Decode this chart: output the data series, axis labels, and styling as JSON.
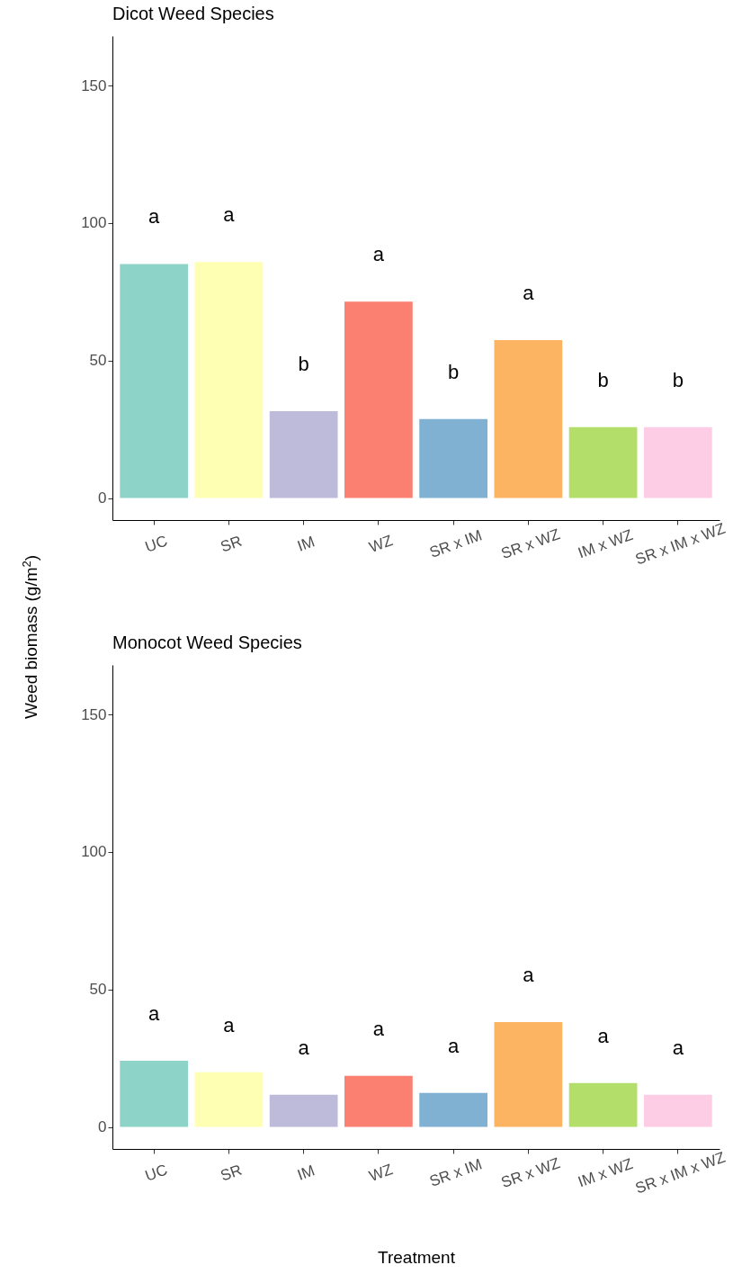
{
  "chart_data": [
    {
      "type": "bar",
      "title": "Dicot Weed Species",
      "ylabel": "Weed biomass (g/m$^{2}$)",
      "categories": [
        "UC",
        "SR",
        "IM",
        "WZ",
        "SR x IM",
        "SR x WZ",
        "IM x WZ",
        "SR x IM x WZ"
      ],
      "values": [
        85.1,
        85.8,
        31.6,
        71.4,
        28.7,
        57.4,
        25.8,
        25.8
      ],
      "colors": [
        "#8dd3c7",
        "#ffffb3",
        "#bebada",
        "#fb8072",
        "#80b1d3",
        "#fdb462",
        "#b3de69",
        "#fccde5"
      ],
      "ylim": [
        -8,
        168
      ],
      "yticks": [
        0,
        50,
        100,
        150
      ],
      "grid": false,
      "annotations": [
        "a",
        "a",
        "b",
        "a",
        "b",
        "a",
        "b",
        "b"
      ]
    },
    {
      "type": "bar",
      "title": "Monocot Weed Species",
      "xlabel": "Treatment",
      "categories": [
        "UC",
        "SR",
        "IM",
        "WZ",
        "SR x IM",
        "SR x WZ",
        "IM x WZ",
        "SR x IM x WZ"
      ],
      "values": [
        24.1,
        19.9,
        11.7,
        18.6,
        12.4,
        38.1,
        16,
        11.7
      ],
      "colors": [
        "#8dd3c7",
        "#ffffb3",
        "#bebada",
        "#fb8072",
        "#80b1d3",
        "#fdb462",
        "#b3de69",
        "#fccde5"
      ],
      "ylim": [
        -8,
        168
      ],
      "yticks": [
        0,
        50,
        100,
        150
      ],
      "grid": false,
      "annotations": [
        "a",
        "a",
        "a",
        "a",
        "a",
        "a",
        "a",
        "a"
      ]
    }
  ]
}
